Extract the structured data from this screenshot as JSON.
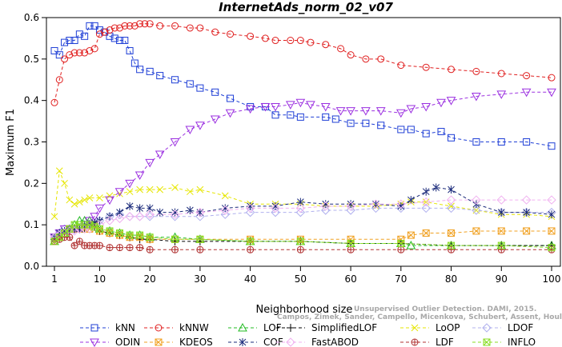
{
  "chart_data": {
    "type": "line",
    "title": "InternetAds_norm_02_v07",
    "xlabel": "Neighborhood size",
    "ylabel": "Maximum F1",
    "xlim": [
      1,
      100
    ],
    "ylim": [
      0,
      0.6
    ],
    "x_ticks": [
      1,
      10,
      20,
      30,
      40,
      50,
      60,
      70,
      80,
      90,
      100
    ],
    "y_ticks": [
      0.0,
      0.1,
      0.2,
      0.3,
      0.4,
      0.5,
      0.6
    ],
    "grid": false,
    "legend_position": "bottom",
    "watermark": [
      "Campos, Zimek, Sander, Campello, Micenkova, Schubert, Assent, Houle",
      "Unsupervised Outlier Detection. DAMI, 2015."
    ],
    "series": [
      {
        "name": "kNN",
        "color": "#1f3fd6",
        "marker": "square",
        "dash": "4,3",
        "x": [
          1,
          2,
          3,
          4,
          5,
          6,
          7,
          8,
          9,
          10,
          11,
          12,
          13,
          14,
          15,
          16,
          17,
          18,
          20,
          22,
          25,
          28,
          30,
          33,
          36,
          40,
          43,
          45,
          48,
          50,
          55,
          57,
          60,
          63,
          66,
          70,
          72,
          75,
          78,
          80,
          85,
          90,
          95,
          100
        ],
        "y": [
          0.52,
          0.51,
          0.54,
          0.545,
          0.545,
          0.56,
          0.555,
          0.58,
          0.58,
          0.57,
          0.565,
          0.555,
          0.55,
          0.545,
          0.545,
          0.52,
          0.49,
          0.475,
          0.47,
          0.46,
          0.45,
          0.44,
          0.43,
          0.42,
          0.405,
          0.385,
          0.385,
          0.365,
          0.365,
          0.36,
          0.36,
          0.355,
          0.345,
          0.345,
          0.34,
          0.33,
          0.33,
          0.32,
          0.325,
          0.31,
          0.3,
          0.3,
          0.3,
          0.29
        ]
      },
      {
        "name": "kNNW",
        "color": "#e02020",
        "marker": "circle",
        "dash": "4,3",
        "x": [
          1,
          2,
          3,
          4,
          5,
          6,
          7,
          8,
          9,
          10,
          11,
          12,
          13,
          14,
          15,
          16,
          17,
          18,
          19,
          20,
          22,
          25,
          28,
          30,
          33,
          36,
          40,
          43,
          45,
          48,
          50,
          52,
          55,
          58,
          60,
          63,
          66,
          70,
          75,
          80,
          85,
          90,
          95,
          100
        ],
        "y": [
          0.395,
          0.45,
          0.5,
          0.51,
          0.515,
          0.515,
          0.515,
          0.52,
          0.525,
          0.56,
          0.565,
          0.57,
          0.575,
          0.575,
          0.58,
          0.58,
          0.58,
          0.585,
          0.585,
          0.585,
          0.58,
          0.58,
          0.575,
          0.575,
          0.565,
          0.56,
          0.555,
          0.55,
          0.545,
          0.545,
          0.545,
          0.54,
          0.535,
          0.525,
          0.51,
          0.5,
          0.5,
          0.485,
          0.48,
          0.475,
          0.47,
          0.465,
          0.46,
          0.455
        ]
      },
      {
        "name": "LOF",
        "color": "#22bb22",
        "marker": "triangle",
        "dash": "4,3",
        "x": [
          1,
          2,
          3,
          4,
          5,
          6,
          7,
          8,
          9,
          10,
          12,
          14,
          16,
          18,
          20,
          25,
          30,
          40,
          50,
          60,
          70,
          72,
          80,
          90,
          100
        ],
        "y": [
          0.06,
          0.07,
          0.08,
          0.09,
          0.1,
          0.11,
          0.11,
          0.11,
          0.1,
          0.09,
          0.085,
          0.08,
          0.075,
          0.075,
          0.07,
          0.07,
          0.065,
          0.06,
          0.06,
          0.055,
          0.055,
          0.05,
          0.05,
          0.05,
          0.05
        ]
      },
      {
        "name": "SimplifiedLOF",
        "color": "#000000",
        "marker": "plus",
        "dash": "4,3",
        "x": [
          1,
          2,
          3,
          4,
          5,
          6,
          7,
          8,
          9,
          10,
          12,
          14,
          16,
          18,
          20,
          25,
          30,
          40,
          50,
          60,
          70,
          80,
          90,
          100
        ],
        "y": [
          0.065,
          0.07,
          0.08,
          0.085,
          0.09,
          0.09,
          0.09,
          0.1,
          0.095,
          0.085,
          0.08,
          0.075,
          0.07,
          0.065,
          0.065,
          0.06,
          0.06,
          0.06,
          0.06,
          0.055,
          0.055,
          0.05,
          0.05,
          0.05
        ]
      },
      {
        "name": "LoOP",
        "color": "#e6e600",
        "marker": "x",
        "dash": "4,3",
        "x": [
          1,
          2,
          3,
          4,
          5,
          6,
          7,
          8,
          10,
          12,
          14,
          16,
          18,
          20,
          22,
          25,
          28,
          30,
          35,
          40,
          45,
          50,
          55,
          60,
          65,
          70,
          72,
          75,
          80,
          85,
          90,
          95,
          100
        ],
        "y": [
          0.12,
          0.23,
          0.2,
          0.16,
          0.15,
          0.155,
          0.16,
          0.165,
          0.165,
          0.17,
          0.175,
          0.18,
          0.185,
          0.185,
          0.185,
          0.19,
          0.18,
          0.185,
          0.17,
          0.15,
          0.15,
          0.15,
          0.145,
          0.145,
          0.145,
          0.15,
          0.155,
          0.155,
          0.145,
          0.135,
          0.125,
          0.125,
          0.12
        ]
      },
      {
        "name": "LDOF",
        "color": "#b0b0ee",
        "marker": "diamond",
        "dash": "4,3",
        "x": [
          1,
          2,
          3,
          4,
          5,
          6,
          7,
          8,
          10,
          12,
          14,
          16,
          18,
          20,
          25,
          30,
          35,
          40,
          45,
          50,
          55,
          60,
          65,
          70,
          75,
          80,
          85,
          90,
          95,
          100
        ],
        "y": [
          0.07,
          0.08,
          0.09,
          0.09,
          0.09,
          0.09,
          0.1,
          0.1,
          0.11,
          0.12,
          0.125,
          0.12,
          0.12,
          0.12,
          0.12,
          0.12,
          0.125,
          0.13,
          0.13,
          0.13,
          0.135,
          0.135,
          0.14,
          0.14,
          0.14,
          0.14,
          0.135,
          0.13,
          0.13,
          0.13
        ]
      },
      {
        "name": "ODIN",
        "color": "#9b30e0",
        "marker": "invtriangle",
        "dash": "4,3",
        "x": [
          1,
          2,
          3,
          4,
          5,
          6,
          7,
          8,
          9,
          10,
          12,
          14,
          16,
          18,
          20,
          22,
          25,
          28,
          30,
          33,
          36,
          40,
          43,
          45,
          48,
          50,
          52,
          55,
          58,
          60,
          63,
          66,
          70,
          72,
          75,
          78,
          80,
          85,
          90,
          95,
          100
        ],
        "y": [
          0.07,
          0.08,
          0.09,
          0.09,
          0.09,
          0.09,
          0.1,
          0.11,
          0.12,
          0.14,
          0.16,
          0.18,
          0.2,
          0.22,
          0.25,
          0.27,
          0.3,
          0.33,
          0.34,
          0.355,
          0.37,
          0.38,
          0.385,
          0.385,
          0.39,
          0.395,
          0.39,
          0.385,
          0.375,
          0.375,
          0.375,
          0.375,
          0.37,
          0.38,
          0.385,
          0.395,
          0.4,
          0.41,
          0.415,
          0.42,
          0.42
        ]
      },
      {
        "name": "KDEOS",
        "color": "#f0a020",
        "marker": "cross-square",
        "dash": "4,3",
        "x": [
          1,
          2,
          3,
          4,
          5,
          6,
          7,
          8,
          9,
          10,
          12,
          14,
          16,
          18,
          20,
          25,
          30,
          40,
          50,
          60,
          70,
          72,
          75,
          80,
          85,
          90,
          95,
          100
        ],
        "y": [
          0.06,
          0.07,
          0.08,
          0.09,
          0.09,
          0.09,
          0.09,
          0.09,
          0.1,
          0.085,
          0.08,
          0.075,
          0.07,
          0.07,
          0.065,
          0.065,
          0.065,
          0.065,
          0.065,
          0.065,
          0.065,
          0.075,
          0.08,
          0.08,
          0.085,
          0.085,
          0.085,
          0.085
        ]
      },
      {
        "name": "COF",
        "color": "#1a2a7a",
        "marker": "asterisk",
        "dash": "4,3",
        "x": [
          1,
          2,
          3,
          4,
          5,
          6,
          7,
          8,
          9,
          10,
          12,
          14,
          16,
          18,
          20,
          22,
          25,
          28,
          30,
          35,
          40,
          45,
          50,
          55,
          60,
          65,
          70,
          72,
          75,
          77,
          80,
          85,
          90,
          95,
          100
        ],
        "y": [
          0.07,
          0.08,
          0.085,
          0.09,
          0.09,
          0.09,
          0.1,
          0.1,
          0.105,
          0.11,
          0.12,
          0.13,
          0.145,
          0.14,
          0.14,
          0.13,
          0.13,
          0.135,
          0.13,
          0.14,
          0.145,
          0.145,
          0.155,
          0.15,
          0.15,
          0.15,
          0.145,
          0.16,
          0.18,
          0.19,
          0.185,
          0.15,
          0.13,
          0.13,
          0.125
        ]
      },
      {
        "name": "FastABOD",
        "color": "#f0b0f0",
        "marker": "diamond",
        "dash": "4,3",
        "x": [
          1,
          2,
          3,
          4,
          5,
          6,
          7,
          8,
          10,
          12,
          14,
          16,
          18,
          20,
          25,
          30,
          35,
          40,
          45,
          50,
          55,
          60,
          65,
          70,
          75,
          80,
          85,
          90,
          95,
          100
        ],
        "y": [
          0.07,
          0.075,
          0.08,
          0.085,
          0.085,
          0.09,
          0.09,
          0.09,
          0.1,
          0.11,
          0.115,
          0.12,
          0.12,
          0.125,
          0.125,
          0.13,
          0.135,
          0.14,
          0.14,
          0.14,
          0.145,
          0.145,
          0.15,
          0.15,
          0.155,
          0.16,
          0.16,
          0.16,
          0.16,
          0.16
        ]
      },
      {
        "name": "LDF",
        "color": "#b03030",
        "marker": "circle-plus",
        "dash": "4,3",
        "x": [
          1,
          2,
          3,
          4,
          5,
          6,
          7,
          8,
          9,
          10,
          12,
          14,
          16,
          18,
          20,
          25,
          30,
          40,
          50,
          60,
          70,
          80,
          90,
          100
        ],
        "y": [
          0.06,
          0.065,
          0.07,
          0.07,
          0.05,
          0.06,
          0.05,
          0.05,
          0.05,
          0.05,
          0.045,
          0.045,
          0.045,
          0.045,
          0.04,
          0.04,
          0.04,
          0.04,
          0.04,
          0.04,
          0.04,
          0.04,
          0.04,
          0.04
        ]
      },
      {
        "name": "INFLO",
        "color": "#88dd22",
        "marker": "cross-square",
        "dash": "4,3",
        "x": [
          1,
          2,
          3,
          4,
          5,
          6,
          7,
          8,
          9,
          10,
          12,
          14,
          16,
          18,
          20,
          25,
          30,
          40,
          50,
          60,
          70,
          80,
          90,
          100
        ],
        "y": [
          0.06,
          0.07,
          0.08,
          0.09,
          0.1,
          0.1,
          0.1,
          0.1,
          0.095,
          0.09,
          0.085,
          0.08,
          0.075,
          0.075,
          0.07,
          0.065,
          0.065,
          0.06,
          0.06,
          0.055,
          0.055,
          0.05,
          0.05,
          0.045
        ]
      }
    ]
  }
}
